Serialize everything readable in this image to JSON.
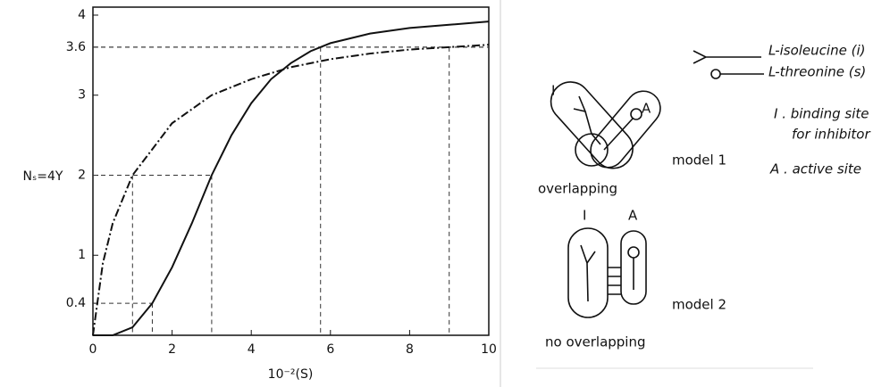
{
  "chart_data": {
    "type": "line",
    "xlabel": "10⁻²(S)",
    "ylabel": "Nₛ=4Y",
    "xlim": [
      0,
      10
    ],
    "ylim": [
      0,
      4.1
    ],
    "xticks": [
      0,
      2,
      4,
      6,
      8,
      10
    ],
    "yticks": [
      {
        "value": 0.4,
        "label": "0.4"
      },
      1,
      2,
      3,
      {
        "value": 3.6,
        "label": "3.6"
      },
      4
    ],
    "series": [
      {
        "style": "solid",
        "color": "#111111",
        "x": [
          0,
          0.5,
          1,
          1.5,
          2,
          2.5,
          3,
          3.5,
          4,
          4.5,
          5,
          5.5,
          6,
          7,
          8,
          9,
          10
        ],
        "values": [
          0,
          0,
          0.1,
          0.4,
          0.85,
          1.4,
          2,
          2.5,
          2.9,
          3.2,
          3.4,
          3.55,
          3.65,
          3.77,
          3.84,
          3.88,
          3.92
        ]
      },
      {
        "style": "dash-dot",
        "color": "#111111",
        "x": [
          0,
          0.25,
          0.5,
          1,
          2,
          3,
          4,
          5,
          6,
          7,
          8,
          9,
          10
        ],
        "values": [
          0,
          0.9,
          1.4,
          2,
          2.65,
          3.0,
          3.2,
          3.35,
          3.45,
          3.52,
          3.57,
          3.6,
          3.63
        ]
      }
    ]
  },
  "diagram": {
    "legend": [
      "L-isoleucine (i)",
      "L-threonine (s)"
    ],
    "site_i": [
      "I . binding site",
      "for inhibitor"
    ],
    "site_a": "A . active site",
    "model1": {
      "label": "model 1",
      "caption": "overlapping",
      "i": "I",
      "a": "A"
    },
    "model2": {
      "label": "model 2",
      "caption": "no overlapping",
      "i": "I",
      "a": "A"
    }
  }
}
